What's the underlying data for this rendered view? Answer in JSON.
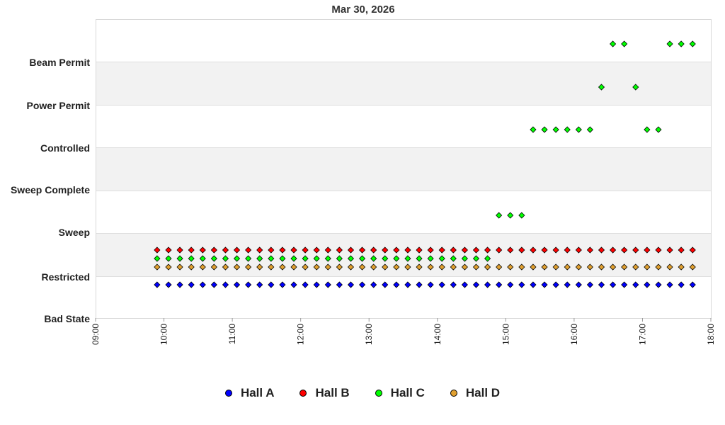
{
  "chart_data": {
    "type": "scatter",
    "title": "Mar 30, 2026",
    "xlabel": "",
    "ylabel": "",
    "xlim": [
      "09:00",
      "18:00"
    ],
    "x_ticks": [
      "09:00",
      "10:00",
      "11:00",
      "12:00",
      "13:00",
      "14:00",
      "15:00",
      "16:00",
      "17:00",
      "18:00"
    ],
    "y_categories": [
      "Bad State",
      "Restricted",
      "Sweep",
      "Sweep Complete",
      "Controlled",
      "Power Permit",
      "Beam Permit"
    ],
    "grid": "alternating horizontal bands",
    "legend_position": "bottom",
    "series": [
      {
        "name": "Hall A",
        "color": "#0000ff",
        "points": [
          {
            "start": "09:54",
            "end": "17:44",
            "interval_min": 10,
            "state": "Restricted"
          }
        ]
      },
      {
        "name": "Hall B",
        "color": "#ff0000",
        "points": [
          {
            "start": "09:54",
            "end": "17:44",
            "interval_min": 10,
            "state": "Restricted"
          }
        ]
      },
      {
        "name": "Hall C",
        "color": "#00ff00",
        "points": [
          {
            "start": "09:54",
            "end": "14:44",
            "interval_min": 10,
            "state": "Restricted"
          },
          {
            "start": "14:54",
            "end": "15:14",
            "interval_min": 10,
            "state": "Sweep"
          },
          {
            "start": "15:24",
            "end": "16:14",
            "interval_min": 10,
            "state": "Controlled"
          },
          {
            "start": "16:24",
            "end": "16:24",
            "interval_min": 10,
            "state": "Power Permit"
          },
          {
            "start": "16:34",
            "end": "16:44",
            "interval_min": 10,
            "state": "Beam Permit"
          },
          {
            "start": "16:54",
            "end": "16:54",
            "interval_min": 10,
            "state": "Power Permit"
          },
          {
            "start": "17:04",
            "end": "17:14",
            "interval_min": 10,
            "state": "Controlled"
          },
          {
            "start": "17:24",
            "end": "17:44",
            "interval_min": 10,
            "state": "Beam Permit"
          }
        ]
      },
      {
        "name": "Hall D",
        "color": "#e0a030",
        "points": [
          {
            "start": "09:54",
            "end": "17:44",
            "interval_min": 10,
            "state": "Restricted"
          }
        ]
      }
    ]
  },
  "legend": [
    {
      "label": "Hall A",
      "color": "#0000ff"
    },
    {
      "label": "Hall B",
      "color": "#ff0000"
    },
    {
      "label": "Hall C",
      "color": "#00ff00"
    },
    {
      "label": "Hall D",
      "color": "#e0a030"
    }
  ]
}
